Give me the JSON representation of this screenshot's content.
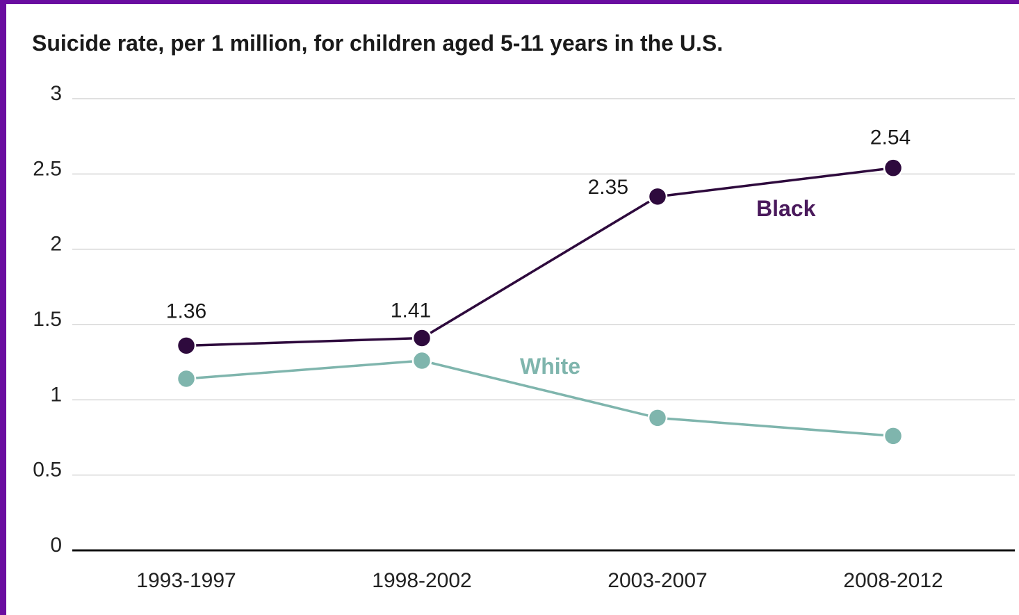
{
  "chart_data": {
    "type": "line",
    "title": "Suicide rate, per 1 million, for children aged 5-11 years in the U.S.",
    "xlabel": "",
    "ylabel": "",
    "categories": [
      "1993-1997",
      "1998-2002",
      "2003-2007",
      "2008-2012"
    ],
    "ylim": [
      0,
      3
    ],
    "yticks": [
      0,
      0.5,
      1,
      1.5,
      2,
      2.5,
      3
    ],
    "ytick_labels": [
      "0",
      "0.5",
      "1",
      "1.5",
      "2",
      "2.5",
      "3"
    ],
    "grid": true,
    "series": [
      {
        "name": "Black",
        "values": [
          1.36,
          1.41,
          2.35,
          2.54
        ],
        "data_labels": [
          "1.36",
          "1.41",
          "2.35",
          "2.54"
        ],
        "color": "#2e0a3d",
        "label_color": "#4a1a5c"
      },
      {
        "name": "White",
        "values": [
          1.14,
          1.26,
          0.88,
          0.76
        ],
        "color": "#7fb5ad",
        "label_color": "#7fb5ad"
      }
    ]
  }
}
